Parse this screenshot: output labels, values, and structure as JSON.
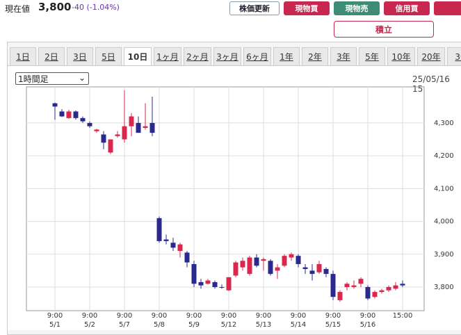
{
  "header": {
    "price_label": "現在値",
    "price": "3,800",
    "change": "-40 (-1.04%)",
    "buttons": [
      {
        "label": "株価更新",
        "style": "refresh"
      },
      {
        "label": "現物買",
        "style": "buy"
      },
      {
        "label": "現物売",
        "style": "sell"
      },
      {
        "label": "信用買",
        "style": "buy"
      }
    ],
    "tsumitate": "積立"
  },
  "tabs": [
    {
      "label": "1日"
    },
    {
      "label": "2日"
    },
    {
      "label": "3日"
    },
    {
      "label": "5日"
    },
    {
      "label": "10日",
      "active": true
    },
    {
      "label": "1ヶ月"
    },
    {
      "label": "2ヶ月"
    },
    {
      "label": "3ヶ月"
    },
    {
      "label": "6ヶ月"
    },
    {
      "label": "1年"
    },
    {
      "label": "2年"
    },
    {
      "label": "3年"
    },
    {
      "label": "5年"
    },
    {
      "label": "10年"
    },
    {
      "label": "20年"
    },
    {
      "label": "30"
    }
  ],
  "interval_select": "1時間足",
  "timestamp": "25/05/16 15",
  "chart_data": {
    "type": "candlestick",
    "up_color": "#d9274d",
    "down_color": "#2a2a8e",
    "grid": true,
    "categories": [
      "9:00",
      null,
      null,
      null,
      null,
      "9:00",
      null,
      null,
      null,
      null,
      "9:00",
      null,
      null,
      null,
      null,
      "9:00",
      null,
      null,
      null,
      null,
      "9:00",
      null,
      null,
      null,
      null,
      "9:00",
      null,
      null,
      null,
      null,
      "9:00",
      null,
      null,
      null,
      null,
      "9:00",
      null,
      null,
      null,
      null,
      "9:00",
      null,
      null,
      null,
      null,
      "9:00",
      null,
      null,
      null,
      null,
      "15:00"
    ],
    "dates": [
      "5/1",
      null,
      null,
      null,
      null,
      "5/2",
      null,
      null,
      null,
      null,
      "5/7",
      null,
      null,
      null,
      null,
      "5/8",
      null,
      null,
      null,
      null,
      "5/9",
      null,
      null,
      null,
      null,
      "5/12",
      null,
      null,
      null,
      null,
      "5/13",
      null,
      null,
      null,
      null,
      "5/14",
      null,
      null,
      null,
      null,
      "5/15",
      null,
      null,
      null,
      null,
      "5/16",
      null,
      null,
      null,
      null,
      null
    ],
    "open": [
      4360,
      4335,
      4315,
      4335,
      4315,
      4300,
      4275,
      4265,
      4210,
      4260,
      4250,
      4290,
      4300,
      4285,
      4300,
      4010,
      3945,
      3935,
      3910,
      3905,
      3870,
      3815,
      3810,
      3815,
      3800,
      3790,
      3835,
      3860,
      3840,
      3890,
      3880,
      3880,
      3850,
      3865,
      3890,
      3895,
      3860,
      3850,
      3845,
      3855,
      3840,
      3760,
      3800,
      3800,
      3810,
      3800,
      3770,
      3785,
      3790,
      3795,
      3810
    ],
    "high": [
      4362,
      4342,
      4340,
      4338,
      4320,
      4305,
      4282,
      4275,
      4250,
      4275,
      4400,
      4330,
      4320,
      4360,
      4380,
      4015,
      3960,
      3950,
      3935,
      3910,
      3880,
      3825,
      3825,
      3820,
      3808,
      3830,
      3880,
      3890,
      3895,
      3900,
      3890,
      3885,
      3870,
      3900,
      3905,
      3900,
      3870,
      3870,
      3880,
      3860,
      3850,
      3790,
      3815,
      3820,
      3830,
      3805,
      3790,
      3795,
      3805,
      3815,
      3820
    ],
    "low": [
      4310,
      4318,
      4312,
      4310,
      4300,
      4285,
      4270,
      4220,
      4205,
      4255,
      4240,
      4260,
      4270,
      4280,
      4260,
      3935,
      3930,
      3910,
      3890,
      3860,
      3800,
      3795,
      3808,
      3795,
      3795,
      3788,
      3830,
      3850,
      3835,
      3860,
      3850,
      3835,
      3825,
      3860,
      3880,
      3860,
      3840,
      3820,
      3840,
      3830,
      3760,
      3755,
      3790,
      3795,
      3800,
      3760,
      3765,
      3780,
      3785,
      3790,
      3800
    ],
    "close": [
      4350,
      4320,
      4335,
      4315,
      4305,
      4290,
      4280,
      4240,
      4250,
      4265,
      4290,
      4320,
      4270,
      4290,
      4270,
      3940,
      3940,
      3920,
      3930,
      3875,
      3810,
      3805,
      3820,
      3800,
      3798,
      3830,
      3875,
      3880,
      3890,
      3865,
      3885,
      3840,
      3860,
      3895,
      3900,
      3870,
      3855,
      3840,
      3870,
      3840,
      3770,
      3785,
      3810,
      3805,
      3825,
      3765,
      3785,
      3790,
      3800,
      3805,
      3805
    ],
    "ylim": [
      3728,
      4410
    ],
    "yticks": [
      {
        "value": 3800,
        "label": "3,800"
      },
      {
        "value": 3900,
        "label": "3,900"
      },
      {
        "value": 4000,
        "label": "4,000"
      },
      {
        "value": 4100,
        "label": "4,100"
      },
      {
        "value": 4200,
        "label": "4,200"
      },
      {
        "value": 4300,
        "label": "4,300"
      }
    ]
  }
}
